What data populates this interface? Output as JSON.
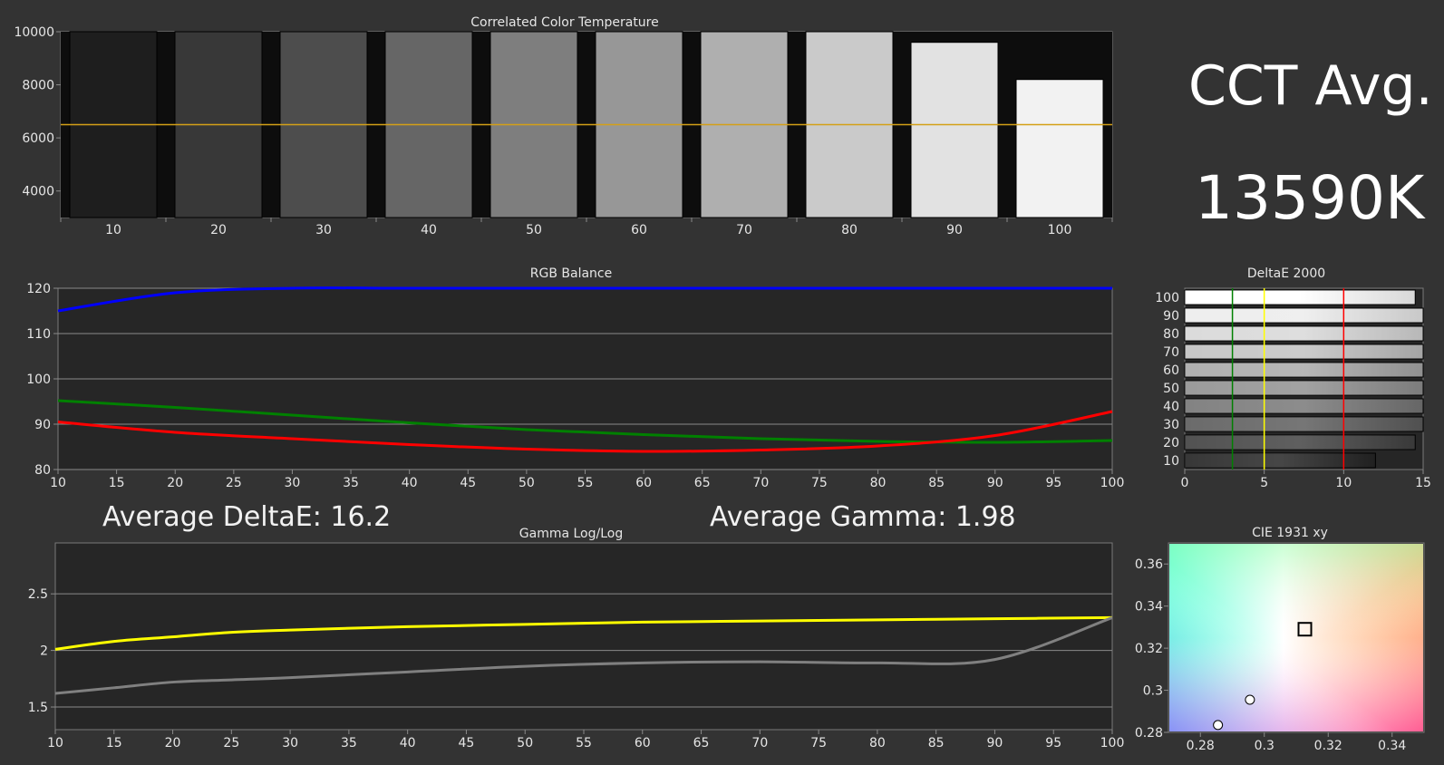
{
  "cct_summary": {
    "label": "CCT Avg.",
    "value": "13590K"
  },
  "stats": {
    "avg_delta_e": "Average DeltaE: 16.2",
    "avg_gamma": "Average Gamma: 1.98"
  },
  "colors": {
    "blue": "#0000ff",
    "green": "#008000",
    "red": "#ff0000",
    "yellow": "#ffff00",
    "gray": "#808080",
    "target": "#d4a017"
  },
  "chart_data": [
    {
      "id": "cct",
      "type": "bar",
      "title": "Correlated Color Temperature",
      "categories": [
        "10",
        "20",
        "30",
        "40",
        "50",
        "60",
        "70",
        "80",
        "90",
        "100"
      ],
      "values": [
        10000,
        10000,
        10000,
        10000,
        10000,
        10000,
        10000,
        10000,
        9600,
        8200
      ],
      "bar_colors": [
        "#1e1e1e",
        "#383838",
        "#4d4d4d",
        "#666666",
        "#7e7e7e",
        "#979797",
        "#afafaf",
        "#cacaca",
        "#e2e2e2",
        "#f2f2f2"
      ],
      "ylim": [
        3000,
        10000
      ],
      "yticks": [
        4000,
        6000,
        8000,
        10000
      ],
      "target": 6500
    },
    {
      "id": "rgb",
      "type": "line",
      "title": "RGB Balance",
      "x": [
        10,
        20,
        30,
        40,
        50,
        60,
        70,
        80,
        90,
        100
      ],
      "xticks": [
        10,
        15,
        20,
        25,
        30,
        35,
        40,
        45,
        50,
        55,
        60,
        65,
        70,
        75,
        80,
        85,
        90,
        95,
        100
      ],
      "ylim": [
        80,
        120
      ],
      "yticks": [
        80,
        90,
        100,
        110,
        120
      ],
      "series": [
        {
          "color": "#0000ff",
          "values": [
            115,
            119,
            120,
            120,
            120,
            120,
            120,
            120,
            120,
            120
          ]
        },
        {
          "color": "#008000",
          "values": [
            95.2,
            93.7,
            92,
            90.3,
            88.8,
            87.7,
            86.8,
            86.2,
            86,
            86.4
          ]
        },
        {
          "color": "#ff0000",
          "values": [
            90.5,
            88.2,
            86.8,
            85.5,
            84.5,
            84,
            84.3,
            85.2,
            87.5,
            92.8
          ]
        }
      ]
    },
    {
      "id": "deltae",
      "type": "bar",
      "orientation": "horizontal",
      "title": "DeltaE 2000",
      "categories": [
        "100",
        "90",
        "80",
        "70",
        "60",
        "50",
        "40",
        "30",
        "20",
        "10"
      ],
      "values": [
        14.5,
        15,
        15,
        15,
        15,
        15,
        15,
        15,
        14.5,
        12
      ],
      "xlim": [
        0,
        15
      ],
      "xticks": [
        0,
        5,
        10,
        15
      ],
      "thresholds": [
        3,
        5,
        10
      ]
    },
    {
      "id": "gamma",
      "type": "line",
      "title": "Gamma Log/Log",
      "x": [
        10,
        15,
        20,
        25,
        30,
        40,
        50,
        60,
        70,
        80,
        90,
        100
      ],
      "xticks": [
        10,
        15,
        20,
        25,
        30,
        35,
        40,
        45,
        50,
        55,
        60,
        65,
        70,
        75,
        80,
        85,
        90,
        95,
        100
      ],
      "ylim": [
        1.3,
        2.95
      ],
      "yticks": [
        1.5,
        2,
        2.5
      ],
      "series": [
        {
          "color": "#ffff00",
          "values": [
            2.01,
            2.08,
            2.12,
            2.16,
            2.18,
            2.21,
            2.23,
            2.25,
            2.26,
            2.27,
            2.28,
            2.29
          ]
        },
        {
          "color": "#808080",
          "values": [
            1.62,
            1.67,
            1.72,
            1.74,
            1.76,
            1.81,
            1.86,
            1.89,
            1.9,
            1.89,
            1.92,
            2.29
          ]
        }
      ]
    },
    {
      "id": "cie",
      "type": "scatter",
      "title": "CIE 1931 xy",
      "xlim": [
        0.27,
        0.35
      ],
      "ylim": [
        0.28,
        0.37
      ],
      "xticks": [
        0.28,
        0.3,
        0.32,
        0.34
      ],
      "yticks": [
        0.28,
        0.3,
        0.32,
        0.34,
        0.36
      ],
      "xtick_labels": [
        "0.28",
        "0.3",
        "0.32",
        "0.34"
      ],
      "ytick_labels": [
        "0.28",
        "0.3",
        "0.32",
        "0.34",
        "0.36"
      ],
      "target": {
        "x": 0.3127,
        "y": 0.329
      },
      "points": [
        {
          "x": 0.2955,
          "y": 0.2955
        },
        {
          "x": 0.2855,
          "y": 0.2835
        }
      ]
    }
  ]
}
